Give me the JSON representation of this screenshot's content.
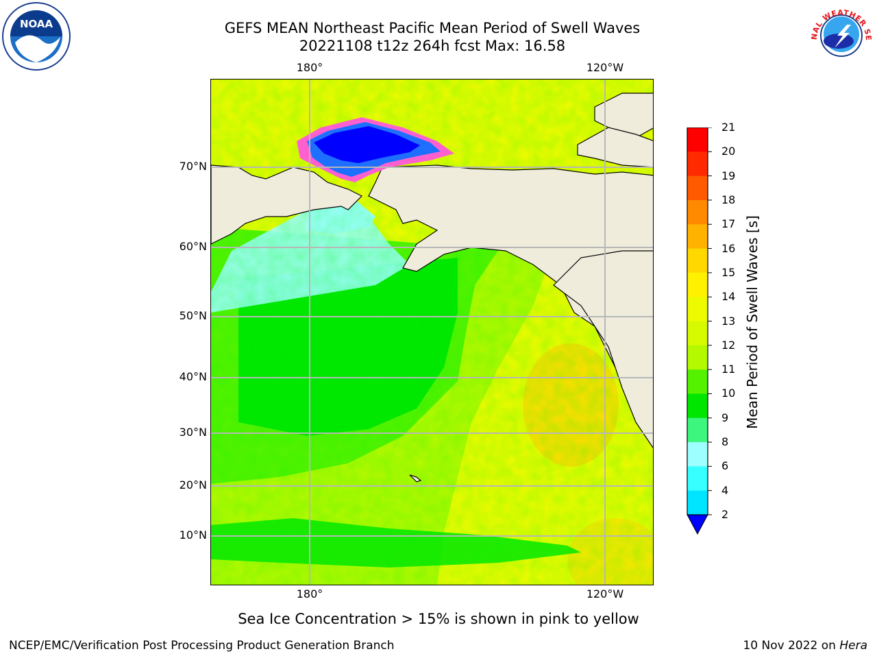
{
  "title": {
    "line1": "GEFS MEAN Northeast Pacific Mean Period of Swell Waves",
    "line2": "20221108 t12z 264h fcst   Max: 16.58"
  },
  "axes": {
    "lon_ticks_top": [
      "180°",
      "120°W"
    ],
    "lon_ticks_bottom": [
      "180°",
      "120°W"
    ],
    "lat_ticks": [
      "70°N",
      "60°N",
      "50°N",
      "40°N",
      "30°N",
      "20°N",
      "10°N"
    ]
  },
  "colorbar": {
    "title": "Mean Period of Swell Waves [s]",
    "labels": [
      "2",
      "4",
      "6",
      "8",
      "9",
      "10",
      "11",
      "12",
      "13",
      "14",
      "15",
      "16",
      "17",
      "18",
      "19",
      "20",
      "21"
    ],
    "colors": [
      "#0073ff",
      "#00e5ff",
      "#37ffff",
      "#9dffff",
      "#3cf67e",
      "#00e600",
      "#55f200",
      "#b4f900",
      "#d6fa00",
      "#eefb00",
      "#fff100",
      "#ffd800",
      "#ffb200",
      "#ff8a00",
      "#ff5a00",
      "#ff2a00",
      "#ff0000"
    ],
    "extend_color": "#0000ff"
  },
  "note": "Sea Ice Concentration > 15% is shown in pink to yellow",
  "footer": {
    "credit": "NCEP/EMC/Verification Post Processing Product Generation Branch",
    "date": "10 Nov 2022 on",
    "host": "Hera"
  },
  "logos": {
    "noaa_text": "NOAA",
    "nws_text": "NATIONAL WEATHER SERVICE"
  },
  "map_colors": {
    "land": "#efecdc",
    "ice_deep": "#0000ff",
    "ice_blue": "#1f6fff",
    "ice_edge": "#ff60d0",
    "light_cyan": "#9dffff",
    "green": "#00e600",
    "green2": "#55f200",
    "yellow_green": "#b4f900",
    "yellow": "#eefb00",
    "orange_yellow": "#ffd800"
  }
}
